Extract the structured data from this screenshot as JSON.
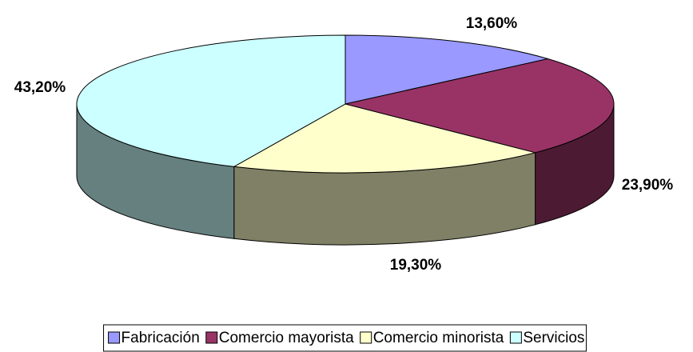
{
  "chart_data": {
    "type": "pie3d",
    "categories": [
      "Fabricación",
      "Comercio mayorista",
      "Comercio minorista",
      "Servicios"
    ],
    "values": [
      13.6,
      23.9,
      19.3,
      43.2
    ],
    "value_labels": [
      "13,60%",
      "23,90%",
      "19,30%",
      "43,20%"
    ],
    "colors": [
      "#9999ff",
      "#993366",
      "#ffffcc",
      "#ccffff"
    ],
    "legend": "bottom"
  }
}
